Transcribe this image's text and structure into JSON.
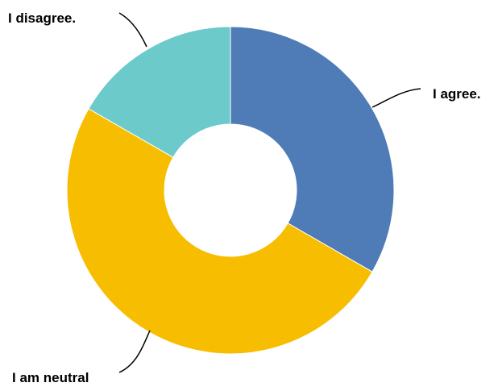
{
  "chart_data": {
    "type": "pie",
    "donut": true,
    "categories": [
      "I agree.",
      "I am neutral",
      "I disagree."
    ],
    "values": [
      33.3,
      50.0,
      16.7
    ],
    "colors": [
      "#4f7cb6",
      "#f7bd00",
      "#6ccaca"
    ],
    "title": "",
    "legend": "none"
  }
}
